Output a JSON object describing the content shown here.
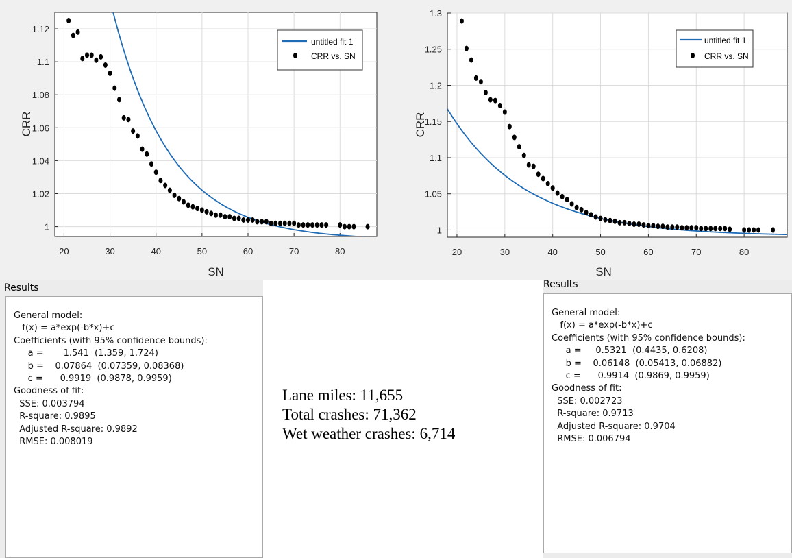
{
  "charts": [
    {
      "xlabel": "SN",
      "ylabel": "CRR",
      "legend": {
        "fit_label": "untitled fit 1",
        "data_label": "CRR vs. SN"
      },
      "xticks": [
        "20",
        "30",
        "40",
        "50",
        "60",
        "70",
        "80"
      ],
      "yticks": [
        "1",
        "1.02",
        "1.04",
        "1.06",
        "1.08",
        "1.1",
        "1.12"
      ]
    },
    {
      "xlabel": "SN",
      "ylabel": "CRR",
      "legend": {
        "fit_label": "untitled fit 1",
        "data_label": "CRR vs. SN"
      },
      "xticks": [
        "20",
        "30",
        "40",
        "50",
        "60",
        "70",
        "80"
      ],
      "yticks": [
        "1",
        "1.05",
        "1.1",
        "1.15",
        "1.2",
        "1.25",
        "1.3"
      ]
    }
  ],
  "chart_data": [
    {
      "type": "scatter",
      "xlabel": "SN",
      "ylabel": "CRR",
      "xlim": [
        18,
        88
      ],
      "ylim": [
        0.994,
        1.13
      ],
      "grid": true,
      "legend_position": "top-right",
      "series": [
        {
          "name": "CRR vs. SN",
          "x": [
            21,
            22,
            23,
            24,
            25,
            26,
            27,
            28,
            29,
            30,
            31,
            32,
            33,
            34,
            35,
            36,
            37,
            38,
            39,
            40,
            41,
            42,
            43,
            44,
            45,
            46,
            47,
            48,
            49,
            50,
            51,
            52,
            53,
            54,
            55,
            56,
            57,
            58,
            59,
            60,
            61,
            62,
            63,
            64,
            65,
            66,
            67,
            68,
            69,
            70,
            71,
            72,
            73,
            74,
            75,
            76,
            77,
            80,
            81,
            82,
            83,
            86
          ],
          "y": [
            1.125,
            1.116,
            1.118,
            1.102,
            1.104,
            1.104,
            1.101,
            1.103,
            1.098,
            1.093,
            1.084,
            1.077,
            1.066,
            1.065,
            1.058,
            1.055,
            1.047,
            1.044,
            1.038,
            1.033,
            1.028,
            1.025,
            1.022,
            1.019,
            1.017,
            1.015,
            1.013,
            1.012,
            1.011,
            1.01,
            1.009,
            1.008,
            1.007,
            1.007,
            1.006,
            1.006,
            1.005,
            1.005,
            1.004,
            1.004,
            1.004,
            1.003,
            1.003,
            1.003,
            1.002,
            1.002,
            1.002,
            1.002,
            1.002,
            1.002,
            1.001,
            1.001,
            1.001,
            1.001,
            1.001,
            1.001,
            1.001,
            1.001,
            1.0,
            1.0,
            1.0,
            1.0
          ]
        },
        {
          "name": "untitled fit 1",
          "model": {
            "a": 1.541,
            "b": 0.07864,
            "c": 0.9919
          }
        }
      ]
    },
    {
      "type": "scatter",
      "xlabel": "SN",
      "ylabel": "CRR",
      "xlim": [
        18,
        89
      ],
      "ylim": [
        0.99,
        1.3
      ],
      "grid": true,
      "legend_position": "top-right",
      "series": [
        {
          "name": "CRR vs. SN",
          "x": [
            21,
            22,
            23,
            24,
            25,
            26,
            27,
            28,
            29,
            30,
            31,
            32,
            33,
            34,
            35,
            36,
            37,
            38,
            39,
            40,
            41,
            42,
            43,
            44,
            45,
            46,
            47,
            48,
            49,
            50,
            51,
            52,
            53,
            54,
            55,
            56,
            57,
            58,
            59,
            60,
            61,
            62,
            63,
            64,
            65,
            66,
            67,
            68,
            69,
            70,
            71,
            72,
            73,
            74,
            75,
            76,
            77,
            80,
            81,
            82,
            83,
            86
          ],
          "y": [
            1.289,
            1.251,
            1.235,
            1.21,
            1.205,
            1.19,
            1.18,
            1.179,
            1.172,
            1.163,
            1.143,
            1.128,
            1.115,
            1.103,
            1.09,
            1.088,
            1.077,
            1.071,
            1.064,
            1.058,
            1.051,
            1.046,
            1.042,
            1.036,
            1.031,
            1.028,
            1.024,
            1.021,
            1.018,
            1.016,
            1.014,
            1.013,
            1.012,
            1.01,
            1.01,
            1.009,
            1.008,
            1.008,
            1.007,
            1.006,
            1.006,
            1.005,
            1.005,
            1.004,
            1.004,
            1.004,
            1.003,
            1.003,
            1.003,
            1.003,
            1.002,
            1.002,
            1.002,
            1.002,
            1.002,
            1.002,
            1.001,
            1.0,
            1.0,
            1.0,
            1.0,
            1.0
          ]
        },
        {
          "name": "untitled fit 1",
          "model": {
            "a": 0.5321,
            "b": 0.06148,
            "c": 0.9914
          }
        }
      ]
    }
  ],
  "results_left": {
    "title": "Results",
    "lines": [
      "General model:",
      "   f(x) = a*exp(-b*x)+c",
      "Coefficients (with 95% confidence bounds):",
      "     a =       1.541  (1.359, 1.724)",
      "     b =    0.07864  (0.07359, 0.08368)",
      "     c =      0.9919  (0.9878, 0.9959)",
      "",
      "Goodness of fit:",
      "  SSE: 0.003794",
      "  R-square: 0.9895",
      "  Adjusted R-square: 0.9892",
      "  RMSE: 0.008019"
    ]
  },
  "results_right": {
    "title": "Results",
    "lines": [
      "General model:",
      "   f(x) = a*exp(-b*x)+c",
      "Coefficients (with 95% confidence bounds):",
      "     a =     0.5321  (0.4435, 0.6208)",
      "     b =    0.06148  (0.05413, 0.06882)",
      "     c =      0.9914  (0.9869, 0.9959)",
      "",
      "Goodness of fit:",
      "  SSE: 0.002723",
      "  R-square: 0.9713",
      "  Adjusted R-square: 0.9704",
      "  RMSE: 0.006794"
    ]
  },
  "stats": {
    "lane_miles": "Lane miles: 11,655",
    "total_crashes": "Total crashes: 71,362",
    "wet_crashes": "Wet weather crashes: 6,714"
  },
  "colors": {
    "fit_line": "#1f6bb5",
    "points": "#000000",
    "grid": "#dcdcdc",
    "plot_bg": "#ffffff",
    "panel_bg": "#f0f0f0"
  }
}
